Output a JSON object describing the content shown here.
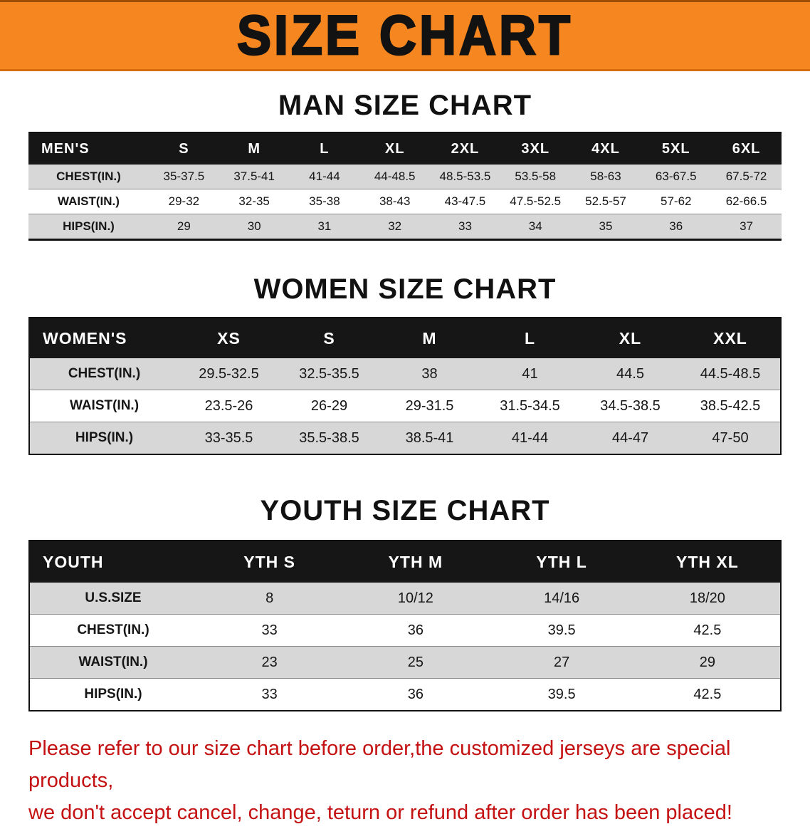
{
  "banner": {
    "title": "SIZE CHART",
    "bg_color": "#f6861f",
    "text_color": "#121212"
  },
  "sections": [
    {
      "heading": "MAN SIZE CHART",
      "table": {
        "corner": "MEN'S",
        "sizes": [
          "S",
          "M",
          "L",
          "XL",
          "2XL",
          "3XL",
          "4XL",
          "5XL",
          "6XL"
        ],
        "rows": [
          {
            "label": "CHEST(IN.)",
            "values": [
              "35-37.5",
              "37.5-41",
              "41-44",
              "44-48.5",
              "48.5-53.5",
              "53.5-58",
              "58-63",
              "63-67.5",
              "67.5-72"
            ]
          },
          {
            "label": "WAIST(IN.)",
            "values": [
              "29-32",
              "32-35",
              "35-38",
              "38-43",
              "43-47.5",
              "47.5-52.5",
              "52.5-57",
              "57-62",
              "62-66.5"
            ]
          },
          {
            "label": "HIPS(IN.)",
            "values": [
              "29",
              "30",
              "31",
              "32",
              "33",
              "34",
              "35",
              "36",
              "37"
            ]
          }
        ]
      }
    },
    {
      "heading": "WOMEN SIZE CHART",
      "table": {
        "corner": "WOMEN'S",
        "sizes": [
          "XS",
          "S",
          "M",
          "L",
          "XL",
          "XXL"
        ],
        "rows": [
          {
            "label": "CHEST(IN.)",
            "values": [
              "29.5-32.5",
              "32.5-35.5",
              "38",
              "41",
              "44.5",
              "44.5-48.5"
            ]
          },
          {
            "label": "WAIST(IN.)",
            "values": [
              "23.5-26",
              "26-29",
              "29-31.5",
              "31.5-34.5",
              "34.5-38.5",
              "38.5-42.5"
            ]
          },
          {
            "label": "HIPS(IN.)",
            "values": [
              "33-35.5",
              "35.5-38.5",
              "38.5-41",
              "41-44",
              "44-47",
              "47-50"
            ]
          }
        ]
      }
    },
    {
      "heading": "YOUTH SIZE CHART",
      "table": {
        "corner": "YOUTH",
        "sizes": [
          "YTH S",
          "YTH M",
          "YTH L",
          "YTH XL"
        ],
        "rows": [
          {
            "label": "U.S.SIZE",
            "values": [
              "8",
              "10/12",
              "14/16",
              "18/20"
            ]
          },
          {
            "label": "CHEST(IN.)",
            "values": [
              "33",
              "36",
              "39.5",
              "42.5"
            ]
          },
          {
            "label": "WAIST(IN.)",
            "values": [
              "23",
              "25",
              "27",
              "29"
            ]
          },
          {
            "label": "HIPS(IN.)",
            "values": [
              "33",
              "36",
              "39.5",
              "42.5"
            ]
          }
        ]
      }
    }
  ],
  "footer": {
    "line1": "Please refer to our size chart before order,the customized jerseys are special products,",
    "line2": "we don't accept cancel, change, teturn or refund after order has been placed!",
    "text_color": "#c41111"
  }
}
